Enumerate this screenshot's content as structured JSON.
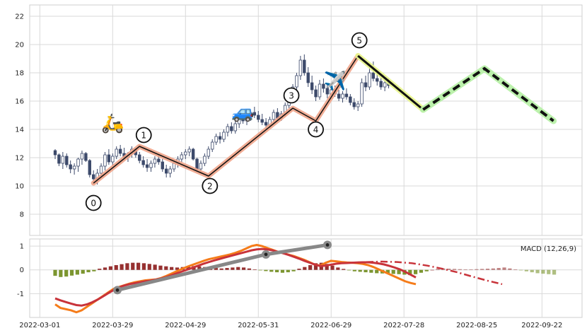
{
  "chart_data": [
    {
      "type": "candlestick",
      "ylim": [
        6.5,
        22.8
      ],
      "y_ticks": [
        "8",
        "10",
        "12",
        "14",
        "16",
        "18",
        "20",
        "22"
      ],
      "grid": true,
      "candles": [
        [
          12.5,
          12.6,
          11.9,
          12.2
        ],
        [
          12.2,
          12.3,
          11.4,
          11.6
        ],
        [
          11.6,
          12.4,
          11.2,
          12.1
        ],
        [
          12.1,
          12.3,
          11.3,
          11.5
        ],
        [
          11.5,
          11.8,
          10.9,
          11.2
        ],
        [
          11.2,
          11.6,
          10.8,
          11.4
        ],
        [
          11.4,
          12.0,
          11.0,
          11.9
        ],
        [
          11.9,
          12.5,
          11.5,
          12.3
        ],
        [
          12.3,
          12.4,
          11.7,
          11.8
        ],
        [
          11.8,
          11.9,
          10.6,
          10.8
        ],
        [
          10.8,
          11.1,
          10.3,
          10.5
        ],
        [
          10.5,
          11.2,
          10.1,
          10.9
        ],
        [
          10.9,
          11.6,
          10.7,
          11.4
        ],
        [
          11.4,
          12.4,
          11.1,
          12.2
        ],
        [
          12.2,
          12.6,
          11.5,
          11.7
        ],
        [
          11.7,
          12.3,
          11.4,
          12.1
        ],
        [
          12.1,
          12.8,
          11.9,
          12.6
        ],
        [
          12.6,
          12.9,
          12.1,
          12.3
        ],
        [
          12.3,
          12.7,
          11.8,
          12.0
        ],
        [
          12.0,
          12.4,
          11.7,
          12.3
        ],
        [
          12.3,
          12.8,
          12.0,
          12.6
        ],
        [
          12.6,
          12.7,
          12.0,
          12.2
        ],
        [
          12.2,
          12.4,
          11.6,
          11.8
        ],
        [
          11.8,
          12.1,
          11.3,
          11.5
        ],
        [
          11.5,
          11.9,
          11.0,
          11.3
        ],
        [
          11.3,
          11.8,
          11.0,
          11.6
        ],
        [
          11.6,
          12.1,
          11.3,
          11.9
        ],
        [
          11.9,
          12.2,
          11.5,
          11.7
        ],
        [
          11.7,
          11.9,
          11.0,
          11.2
        ],
        [
          11.2,
          11.5,
          10.6,
          10.9
        ],
        [
          10.9,
          11.4,
          10.6,
          11.2
        ],
        [
          11.2,
          11.8,
          11.0,
          11.6
        ],
        [
          11.6,
          12.1,
          11.3,
          11.9
        ],
        [
          11.9,
          12.4,
          11.7,
          12.2
        ],
        [
          12.2,
          12.6,
          11.9,
          12.4
        ],
        [
          12.4,
          12.8,
          12.1,
          12.6
        ],
        [
          12.6,
          12.7,
          11.8,
          11.9
        ],
        [
          11.9,
          12.0,
          11.0,
          11.2
        ],
        [
          11.2,
          11.8,
          11.0,
          11.6
        ],
        [
          11.6,
          12.3,
          11.4,
          12.1
        ],
        [
          12.1,
          12.8,
          11.9,
          12.6
        ],
        [
          12.6,
          13.3,
          12.4,
          13.1
        ],
        [
          13.1,
          13.7,
          12.9,
          13.5
        ],
        [
          13.5,
          13.8,
          13.0,
          13.3
        ],
        [
          13.3,
          14.0,
          13.1,
          13.8
        ],
        [
          13.8,
          14.4,
          13.5,
          14.2
        ],
        [
          14.2,
          14.5,
          13.7,
          13.9
        ],
        [
          13.9,
          14.6,
          13.7,
          14.4
        ],
        [
          14.4,
          15.0,
          14.1,
          14.8
        ],
        [
          14.8,
          15.3,
          14.4,
          14.6
        ],
        [
          14.6,
          15.1,
          14.3,
          14.9
        ],
        [
          14.9,
          15.4,
          14.6,
          15.2
        ],
        [
          15.2,
          15.6,
          14.8,
          15.0
        ],
        [
          15.0,
          15.3,
          14.5,
          14.7
        ],
        [
          14.7,
          15.1,
          14.3,
          14.5
        ],
        [
          14.5,
          14.8,
          14.0,
          14.3
        ],
        [
          14.3,
          14.9,
          14.1,
          14.7
        ],
        [
          14.7,
          15.4,
          14.5,
          15.2
        ],
        [
          15.2,
          15.5,
          14.6,
          14.8
        ],
        [
          14.8,
          15.3,
          14.6,
          15.1
        ],
        [
          15.1,
          15.9,
          14.9,
          15.7
        ],
        [
          15.7,
          16.4,
          15.5,
          16.2
        ],
        [
          16.2,
          17.2,
          16.0,
          17.0
        ],
        [
          17.0,
          18.0,
          16.8,
          17.8
        ],
        [
          17.8,
          19.2,
          17.5,
          18.9
        ],
        [
          18.9,
          19.3,
          17.8,
          18.0
        ],
        [
          18.0,
          18.4,
          17.0,
          17.3
        ],
        [
          17.3,
          17.8,
          16.5,
          16.8
        ],
        [
          16.8,
          17.1,
          16.0,
          16.3
        ],
        [
          16.3,
          17.5,
          16.1,
          17.2
        ],
        [
          17.2,
          17.6,
          16.6,
          16.9
        ],
        [
          16.9,
          17.2,
          16.2,
          16.5
        ],
        [
          16.5,
          17.0,
          16.2,
          16.8
        ],
        [
          16.8,
          17.1,
          16.3,
          16.5
        ],
        [
          16.5,
          16.8,
          16.0,
          16.2
        ],
        [
          16.2,
          16.7,
          15.9,
          16.5
        ],
        [
          16.5,
          16.9,
          16.1,
          16.3
        ],
        [
          16.3,
          16.5,
          15.7,
          15.9
        ],
        [
          15.9,
          16.2,
          15.4,
          15.6
        ],
        [
          15.6,
          16.0,
          15.3,
          15.8
        ],
        [
          15.8,
          17.6,
          15.6,
          17.3
        ],
        [
          17.3,
          17.8,
          16.7,
          17.0
        ],
        [
          17.0,
          18.4,
          16.8,
          18.0
        ],
        [
          18.0,
          18.8,
          17.4,
          17.6
        ],
        [
          17.6,
          18.2,
          17.1,
          17.4
        ],
        [
          17.4,
          17.7,
          16.8,
          17.0
        ],
        [
          17.0,
          17.5,
          16.7,
          17.3
        ],
        [
          17.3,
          17.6,
          16.9,
          17.1
        ]
      ],
      "zigzag": {
        "points": [
          [
            10,
            10.2
          ],
          [
            22,
            12.8
          ],
          [
            40,
            10.7
          ],
          [
            62,
            15.5
          ],
          [
            68,
            14.6
          ],
          [
            79,
            19.2
          ]
        ],
        "labels": [
          "0",
          "1",
          "2",
          "3",
          "4",
          "5"
        ]
      },
      "projection": {
        "actual_down": [
          [
            79,
            19.2
          ],
          [
            96,
            15.4
          ]
        ],
        "projected": [
          [
            96,
            15.4
          ],
          [
            112,
            18.3
          ],
          [
            130,
            14.6
          ]
        ]
      },
      "icons": [
        {
          "name": "scooter",
          "glyph": "🛵",
          "x": 15,
          "y": 14.0
        },
        {
          "name": "car",
          "glyph": "🚙",
          "x": 49,
          "y": 14.8
        },
        {
          "name": "airplane",
          "glyph": "✈️",
          "x": 73,
          "y": 17.0
        }
      ]
    },
    {
      "type": "line",
      "title": "MACD (12,26,9)",
      "ylim": [
        -2.0,
        1.3
      ],
      "y_ticks": [
        "-1",
        "0",
        "1"
      ],
      "x_ticks": [
        "2022-03-01",
        "2022-03-29",
        "2022-04-29",
        "2022-05-31",
        "2022-06-29",
        "2022-07-28",
        "2022-08-25",
        "2022-09-22"
      ],
      "series": [
        {
          "role": "macd",
          "values": [
            -1.45,
            -1.6,
            -1.65,
            -1.7,
            -1.78,
            -1.7,
            -1.55,
            -1.4,
            -1.25,
            -1.1,
            -0.95,
            -0.8,
            -0.72,
            -0.65,
            -0.58,
            -0.52,
            -0.48,
            -0.44,
            -0.42,
            -0.4,
            -0.34,
            -0.25,
            -0.15,
            -0.05,
            0.05,
            0.14,
            0.22,
            0.3,
            0.38,
            0.45,
            0.5,
            0.55,
            0.6,
            0.65,
            0.72,
            0.8,
            0.9,
            1.0,
            1.05,
            1.0,
            0.92,
            0.84,
            0.76,
            0.7,
            0.64,
            0.58,
            0.5,
            0.42,
            0.32,
            0.22,
            0.18,
            0.3,
            0.38,
            0.36,
            0.33,
            0.31,
            0.3,
            0.28,
            0.25,
            0.2,
            0.12,
            0.02,
            -0.08,
            -0.18,
            -0.28,
            -0.38,
            -0.48,
            -0.55,
            -0.6
          ]
        },
        {
          "role": "signal",
          "values": [
            -1.2,
            -1.28,
            -1.35,
            -1.42,
            -1.48,
            -1.5,
            -1.45,
            -1.36,
            -1.25,
            -1.12,
            -0.98,
            -0.85,
            -0.74,
            -0.66,
            -0.6,
            -0.56,
            -0.52,
            -0.48,
            -0.45,
            -0.41,
            -0.36,
            -0.3,
            -0.22,
            -0.14,
            -0.06,
            0.02,
            0.1,
            0.18,
            0.26,
            0.33,
            0.4,
            0.46,
            0.52,
            0.58,
            0.64,
            0.7,
            0.76,
            0.82,
            0.86,
            0.88,
            0.86,
            0.82,
            0.76,
            0.7,
            0.63,
            0.55,
            0.47,
            0.38,
            0.3,
            0.22,
            0.16,
            0.18,
            0.22,
            0.26,
            0.28,
            0.29,
            0.3,
            0.31,
            0.32,
            0.32,
            0.3,
            0.27,
            0.23,
            0.17,
            0.1,
            0.02,
            -0.08,
            -0.2,
            -0.32
          ]
        }
      ],
      "histogram": [
        -0.25,
        -0.3,
        -0.28,
        -0.24,
        -0.2,
        -0.16,
        -0.1,
        -0.06,
        0.05,
        0.1,
        0.15,
        0.2,
        0.24,
        0.28,
        0.3,
        0.3,
        0.28,
        0.25,
        0.22,
        0.18,
        0.15,
        0.12,
        0.1,
        0.12,
        0.14,
        0.16,
        0.15,
        0.12,
        0.1,
        0.08,
        0.06,
        0.08,
        0.1,
        0.12,
        0.1,
        0.06,
        0.02,
        -0.02,
        -0.05,
        -0.08,
        -0.1,
        -0.12,
        -0.1,
        -0.06,
        0.05,
        0.12,
        0.2,
        0.28,
        0.3,
        0.25,
        0.18,
        0.1,
        0.04,
        -0.02,
        -0.06,
        -0.08,
        -0.1,
        -0.12,
        -0.14,
        -0.15,
        -0.16,
        -0.17,
        -0.18,
        -0.2,
        -0.22,
        -0.18,
        -0.12,
        -0.06,
        0.0,
        0.04,
        0.06,
        0.05,
        0.04,
        0.03,
        0.02,
        0.02,
        0.03,
        0.04,
        0.05,
        0.06,
        0.08,
        0.1,
        0.06,
        0.02,
        -0.02,
        -0.06,
        -0.1,
        -0.14,
        -0.16,
        -0.18,
        -0.2
      ],
      "projection": [
        0.3,
        0.33,
        0.35,
        0.33,
        0.28,
        0.18,
        0.05,
        -0.1,
        -0.28,
        -0.45,
        -0.6
      ],
      "divergence_line": [
        [
          -0.85,
          0.65
        ],
        [
          0.65,
          1.05
        ]
      ]
    }
  ],
  "colors": {
    "up_fill": "#ffffff",
    "up_edge": "#3d4a6b",
    "down_fill": "#3d4a6b",
    "zigzag_glow": "#f0a48a",
    "zigzag_line": "#111111",
    "projection_glow": "#b8f0a8",
    "actual_glow": "#e8f58a",
    "macd_line": "#f57c1a",
    "signal_line": "#c8333a",
    "hist_pos": "#8b1a1a",
    "hist_neg": "#6e8b1a",
    "divergence": "#888888"
  }
}
